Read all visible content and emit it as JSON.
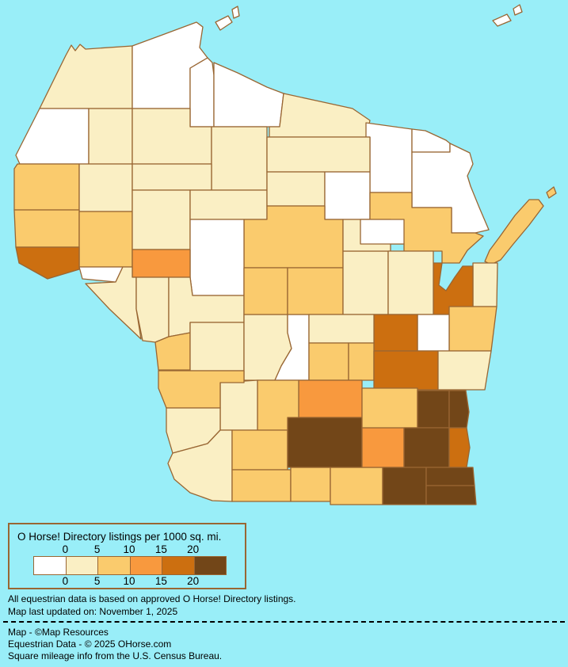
{
  "page": {
    "background_color": "#99EEF8"
  },
  "legend": {
    "title": "O Horse! Directory listings per 1000 sq. mi.",
    "ticks": [
      "0",
      "5",
      "10",
      "15",
      "20"
    ],
    "border_color": "#996633",
    "categories": [
      {
        "label": "0",
        "color": "#FFFFFF"
      },
      {
        "label": "0-5",
        "color": "#FAEFC4"
      },
      {
        "label": "5-10",
        "color": "#FACB6D"
      },
      {
        "label": "10-15",
        "color": "#F8993E"
      },
      {
        "label": "15-20",
        "color": "#CC6F10"
      },
      {
        "label": "20+",
        "color": "#724618"
      }
    ]
  },
  "notes": {
    "line1": "All equestrian data is based on approved O Horse! Directory listings.",
    "line2": "Map last updated on: November 1, 2025",
    "line3": "Map - ©Map Resources",
    "line4": "Equestrian Data - © 2025 OHorse.com",
    "line5": "Square mileage info from the U.S. Census Bureau."
  },
  "map": {
    "region": "Wisconsin counties",
    "water_color": "#99EEF8",
    "county_border_color": "#996633",
    "counties": [
      {
        "name": "Douglas",
        "category": "0-5"
      },
      {
        "name": "Bayfield",
        "category": "0"
      },
      {
        "name": "Ashland",
        "category": "0"
      },
      {
        "name": "Iron",
        "category": "0"
      },
      {
        "name": "Vilas",
        "category": "0-5"
      },
      {
        "name": "Forest",
        "category": "0"
      },
      {
        "name": "Florence",
        "category": "0"
      },
      {
        "name": "Marinette",
        "category": "0"
      },
      {
        "name": "Burnett",
        "category": "0"
      },
      {
        "name": "Washburn",
        "category": "0-5"
      },
      {
        "name": "Sawyer",
        "category": "0-5"
      },
      {
        "name": "Price",
        "category": "0-5"
      },
      {
        "name": "Oneida",
        "category": "0-5"
      },
      {
        "name": "Polk",
        "category": "5-10"
      },
      {
        "name": "Barron",
        "category": "0-5"
      },
      {
        "name": "Rusk",
        "category": "0-5"
      },
      {
        "name": "St. Croix",
        "category": "5-10"
      },
      {
        "name": "Dunn",
        "category": "5-10"
      },
      {
        "name": "Chippewa",
        "category": "0-5"
      },
      {
        "name": "Taylor",
        "category": "0-5"
      },
      {
        "name": "Lincoln",
        "category": "0-5"
      },
      {
        "name": "Langlade",
        "category": "0"
      },
      {
        "name": "Marathon",
        "category": "5-10"
      },
      {
        "name": "Clark",
        "category": "0"
      },
      {
        "name": "Eau Claire",
        "category": "10-15"
      },
      {
        "name": "Pepin",
        "category": "0"
      },
      {
        "name": "Pierce",
        "category": "15-20"
      },
      {
        "name": "Buffalo",
        "category": "0-5"
      },
      {
        "name": "Trempealeau",
        "category": "0-5"
      },
      {
        "name": "Jackson",
        "category": "0-5"
      },
      {
        "name": "La Crosse",
        "category": "5-10"
      },
      {
        "name": "Monroe",
        "category": "0-5"
      },
      {
        "name": "Juneau",
        "category": "0-5"
      },
      {
        "name": "Adams",
        "category": "0"
      },
      {
        "name": "Wood",
        "category": "5-10"
      },
      {
        "name": "Portage",
        "category": "5-10"
      },
      {
        "name": "Waupaca",
        "category": "0-5"
      },
      {
        "name": "Shawano",
        "category": "0-5"
      },
      {
        "name": "Oconto",
        "category": "5-10"
      },
      {
        "name": "Menominee",
        "category": "0"
      },
      {
        "name": "Door",
        "category": "5-10"
      },
      {
        "name": "Kewaunee",
        "category": "0-5"
      },
      {
        "name": "Brown",
        "category": "15-20"
      },
      {
        "name": "Outagamie",
        "category": "0-5"
      },
      {
        "name": "Manitowoc",
        "category": "5-10"
      },
      {
        "name": "Calumet",
        "category": "0"
      },
      {
        "name": "Winnebago",
        "category": "15-20"
      },
      {
        "name": "Waushara",
        "category": "0-5"
      },
      {
        "name": "Marquette",
        "category": "5-10"
      },
      {
        "name": "Green Lake",
        "category": "5-10"
      },
      {
        "name": "Fond du Lac",
        "category": "15-20"
      },
      {
        "name": "Sheboygan",
        "category": "0-5"
      },
      {
        "name": "Columbia",
        "category": "10-15"
      },
      {
        "name": "Sauk",
        "category": "5-10"
      },
      {
        "name": "Richland",
        "category": "0-5"
      },
      {
        "name": "Vernon",
        "category": "5-10"
      },
      {
        "name": "Crawford",
        "category": "0-5"
      },
      {
        "name": "Grant",
        "category": "0-5"
      },
      {
        "name": "Iowa",
        "category": "5-10"
      },
      {
        "name": "Lafayette",
        "category": "5-10"
      },
      {
        "name": "Green",
        "category": "5-10"
      },
      {
        "name": "Rock",
        "category": "5-10"
      },
      {
        "name": "Dane",
        "category": "20+"
      },
      {
        "name": "Jefferson",
        "category": "10-15"
      },
      {
        "name": "Dodge",
        "category": "5-10"
      },
      {
        "name": "Washington",
        "category": "20+"
      },
      {
        "name": "Ozaukee",
        "category": "20+"
      },
      {
        "name": "Waukesha",
        "category": "20+"
      },
      {
        "name": "Milwaukee",
        "category": "15-20"
      },
      {
        "name": "Walworth",
        "category": "20+"
      },
      {
        "name": "Racine",
        "category": "20+"
      },
      {
        "name": "Kenosha",
        "category": "20+"
      }
    ]
  }
}
